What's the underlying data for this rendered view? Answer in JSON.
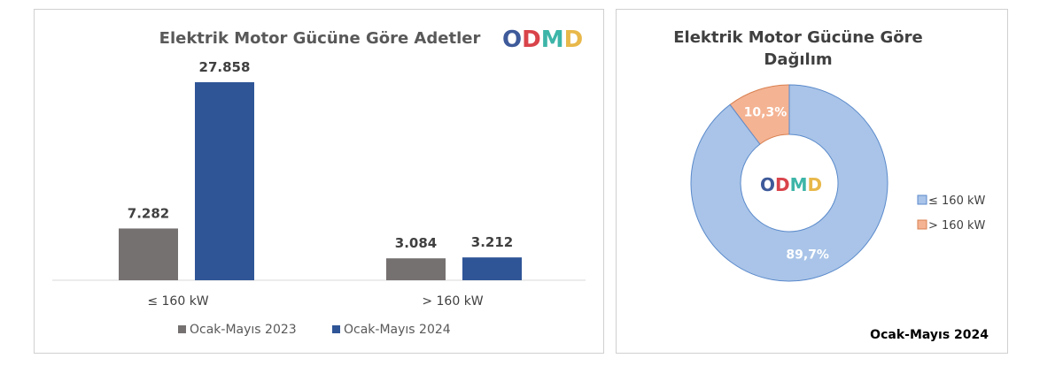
{
  "chart_data": [
    {
      "type": "bar",
      "title": "Elektrik Motor Gücüne Göre Adetler",
      "categories": [
        "≤ 160 kW",
        "> 160 kW"
      ],
      "series": [
        {
          "name": "Ocak-Mayıs 2023",
          "color": "#767171",
          "values": [
            7282,
            3084
          ],
          "labels": [
            "7.282",
            "3.084"
          ]
        },
        {
          "name": "Ocak-Mayıs 2024",
          "color": "#2F5597",
          "values": [
            27858,
            3212
          ],
          "labels": [
            "27.858",
            "3.212"
          ]
        }
      ],
      "legend": "bottom",
      "grid": false,
      "ylim": [
        0,
        27858
      ]
    },
    {
      "type": "pie",
      "title": "Elektrik Motor Gücüne Göre Dağılım",
      "subtitle": "Ocak-Mayıs 2024",
      "donut": true,
      "slices": [
        {
          "name": "≤ 160 kW",
          "value": 89.7,
          "label": "89,7%",
          "color": "#A9C4E8"
        },
        {
          "name": "> 160 kW",
          "value": 10.3,
          "label": "10,3%",
          "color": "#F4B393"
        }
      ],
      "legend": "right"
    }
  ],
  "logo": {
    "text": "ODMD",
    "colors": [
      "#3E5A9A",
      "#D9434A",
      "#3DB5A8",
      "#E8B84A"
    ]
  }
}
